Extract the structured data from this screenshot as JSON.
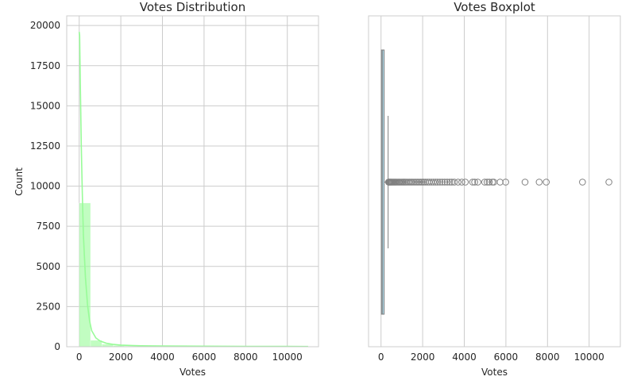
{
  "chart_data": [
    {
      "type": "bar",
      "title": "Votes Distribution",
      "xlabel": "Votes",
      "ylabel": "Count",
      "xlim": [
        -600,
        11500
      ],
      "ylim": [
        0,
        20600
      ],
      "x_ticks": [
        0,
        2000,
        4000,
        6000,
        8000,
        10000
      ],
      "x_tick_labels": [
        "0",
        "2000",
        "4000",
        "6000",
        "8000",
        "10000"
      ],
      "y_ticks": [
        0,
        2500,
        5000,
        7500,
        10000,
        12500,
        15000,
        17500,
        20000
      ],
      "y_tick_labels": [
        "0",
        "2500",
        "5000",
        "7500",
        "10000",
        "12500",
        "15000",
        "17500",
        "20000"
      ],
      "grid": true,
      "bar_color": "#98fb98",
      "bins": [
        {
          "x0": 0,
          "x1": 545,
          "count": 8950
        },
        {
          "x0": 545,
          "x1": 1090,
          "count": 400
        },
        {
          "x0": 1090,
          "x1": 1635,
          "count": 160
        },
        {
          "x0": 1635,
          "x1": 2180,
          "count": 80
        },
        {
          "x0": 2180,
          "x1": 2725,
          "count": 45
        },
        {
          "x0": 2725,
          "x1": 3270,
          "count": 25
        },
        {
          "x0": 3270,
          "x1": 3815,
          "count": 18
        },
        {
          "x0": 3815,
          "x1": 4360,
          "count": 12
        },
        {
          "x0": 4360,
          "x1": 4905,
          "count": 10
        },
        {
          "x0": 4905,
          "x1": 5450,
          "count": 8
        }
      ],
      "kde": {
        "x": [
          0,
          20,
          40,
          60,
          100,
          150,
          200,
          300,
          400,
          500,
          600,
          800,
          1000,
          1300,
          1600,
          2000,
          2500,
          3000,
          4000,
          5000,
          6000,
          7000,
          8000,
          9000,
          10000,
          11000
        ],
        "y": [
          19600,
          19400,
          17500,
          15800,
          12500,
          9500,
          7000,
          4300,
          2600,
          1600,
          1000,
          550,
          360,
          220,
          150,
          100,
          75,
          60,
          45,
          38,
          32,
          28,
          25,
          22,
          20,
          18
        ]
      }
    },
    {
      "type": "boxplot",
      "title": "Votes Boxplot",
      "xlabel": "Votes",
      "xlim": [
        -600,
        11500
      ],
      "x_ticks": [
        0,
        2000,
        4000,
        6000,
        8000,
        10000
      ],
      "x_tick_labels": [
        "0",
        "2000",
        "4000",
        "6000",
        "8000",
        "10000"
      ],
      "grid": true,
      "box_color": "#add8e6",
      "line_color": "#808080",
      "stats": {
        "whisker_low": 0,
        "q1": 18,
        "median": 60,
        "q3": 150,
        "whisker_high": 340
      },
      "outliers": [
        360,
        380,
        400,
        430,
        460,
        490,
        520,
        560,
        600,
        640,
        680,
        720,
        770,
        820,
        870,
        920,
        980,
        1040,
        1100,
        1160,
        1220,
        1290,
        1360,
        1430,
        1500,
        1580,
        1660,
        1740,
        1820,
        1900,
        1980,
        2060,
        2140,
        2230,
        2320,
        2420,
        2520,
        2620,
        2720,
        2830,
        2940,
        3060,
        3180,
        3300,
        3400,
        3520,
        3700,
        3880,
        4050,
        4400,
        4500,
        4650,
        4980,
        5100,
        5200,
        5350,
        5420,
        5720,
        5990,
        6920,
        7600,
        7940,
        9680,
        10950
      ]
    }
  ]
}
